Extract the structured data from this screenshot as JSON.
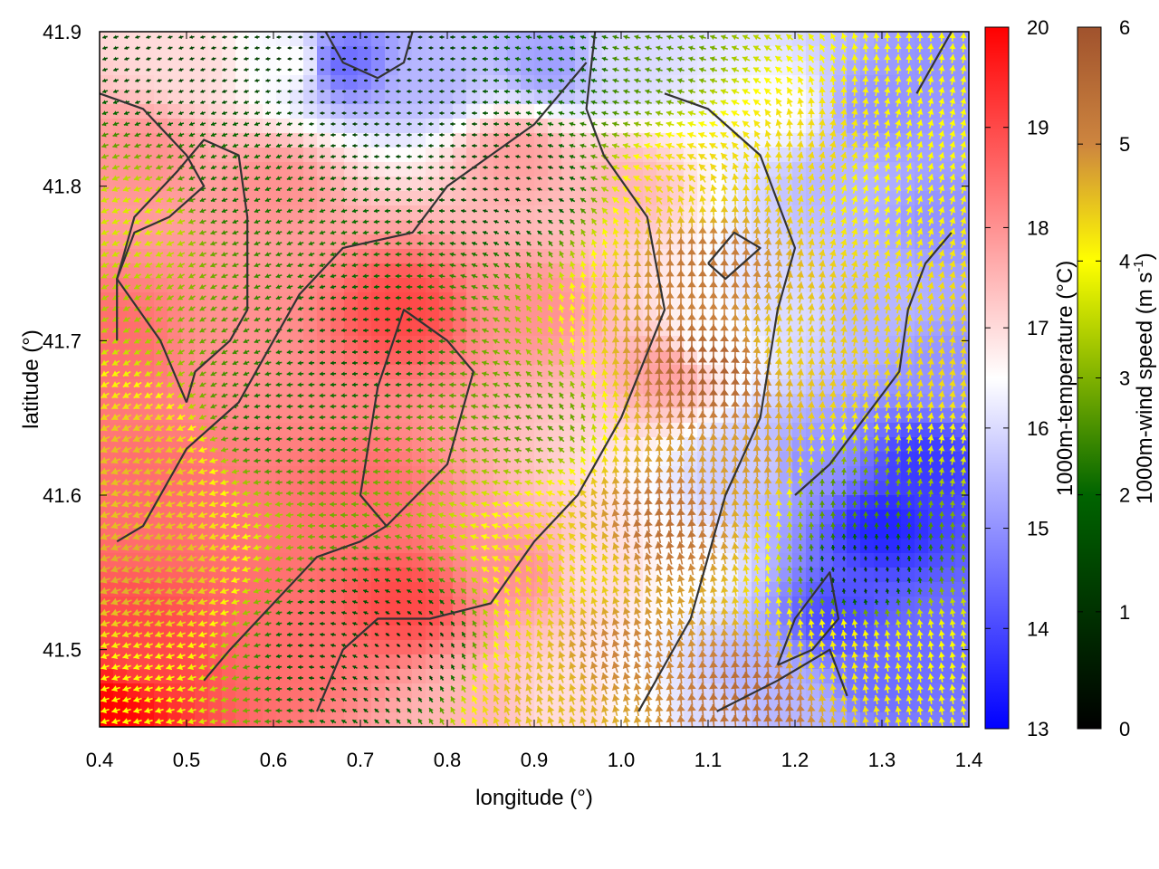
{
  "chart_data": {
    "type": "heatmap",
    "title": "",
    "xlabel": "longitude (°)",
    "ylabel": "latitude (°)",
    "xlim": [
      0.4,
      1.4
    ],
    "ylim": [
      41.45,
      41.9
    ],
    "xticks": [
      "0.4",
      "0.5",
      "0.6",
      "0.7",
      "0.8",
      "0.9",
      "1.0",
      "1.1",
      "1.2",
      "1.3",
      "1.4"
    ],
    "yticks": [
      "41.5",
      "41.6",
      "41.7",
      "41.8",
      "41.9"
    ],
    "grid": false,
    "colorbars": [
      {
        "label": "1000m-temperature (°C)",
        "range": [
          13,
          20
        ],
        "ticks": [
          "13",
          "14",
          "15",
          "16",
          "17",
          "18",
          "19",
          "20"
        ],
        "colors": [
          "#0000ff",
          "#ffffff",
          "#ff0000"
        ]
      },
      {
        "label_main": "1000m-wind speed (m s",
        "label_sup": "-1",
        "label_end": ")",
        "range": [
          0,
          6
        ],
        "ticks": [
          "0",
          "1",
          "2",
          "3",
          "4",
          "5",
          "6"
        ],
        "colors": [
          "#000000",
          "#006400",
          "#ffff00",
          "#cd853f",
          "#a0522d"
        ]
      }
    ],
    "temperature_field": {
      "description_points_lon_lat_value": [
        [
          0.4,
          41.46,
          20.0
        ],
        [
          0.45,
          41.5,
          19.0
        ],
        [
          0.45,
          41.6,
          18.5
        ],
        [
          0.42,
          41.7,
          18.5
        ],
        [
          0.45,
          41.82,
          18.0
        ],
        [
          0.55,
          41.7,
          18.0
        ],
        [
          0.6,
          41.8,
          18.0
        ],
        [
          0.75,
          41.72,
          19.0
        ],
        [
          0.7,
          41.6,
          18.5
        ],
        [
          0.75,
          41.53,
          19.0
        ],
        [
          0.62,
          41.5,
          18.5
        ],
        [
          0.88,
          41.55,
          18.0
        ],
        [
          0.9,
          41.72,
          18.0
        ],
        [
          0.88,
          41.82,
          17.8
        ],
        [
          1.0,
          41.8,
          17.5
        ],
        [
          1.05,
          41.68,
          17.8
        ],
        [
          0.98,
          41.55,
          17.0
        ],
        [
          1.08,
          41.55,
          16.5
        ],
        [
          1.1,
          41.7,
          16.5
        ],
        [
          1.15,
          41.62,
          15.8
        ],
        [
          0.62,
          41.88,
          16.5
        ],
        [
          0.5,
          41.88,
          17.0
        ],
        [
          0.78,
          41.87,
          15.5
        ],
        [
          0.68,
          41.88,
          14.5
        ],
        [
          0.92,
          41.88,
          15.2
        ],
        [
          1.0,
          41.88,
          16.0
        ],
        [
          1.18,
          41.85,
          16.5
        ],
        [
          1.25,
          41.8,
          15.5
        ],
        [
          1.3,
          41.85,
          15.0
        ],
        [
          1.38,
          41.88,
          15.0
        ],
        [
          1.38,
          41.78,
          15.0
        ],
        [
          1.28,
          41.72,
          15.5
        ],
        [
          1.38,
          41.68,
          15.0
        ],
        [
          1.22,
          41.62,
          15.0
        ],
        [
          1.3,
          41.58,
          13.5
        ],
        [
          1.35,
          41.62,
          13.8
        ],
        [
          1.25,
          41.52,
          14.0
        ],
        [
          1.3,
          41.48,
          14.5
        ],
        [
          1.15,
          41.48,
          15.5
        ],
        [
          1.1,
          41.46,
          16.0
        ],
        [
          1.2,
          41.46,
          15.5
        ],
        [
          1.38,
          41.5,
          14.5
        ],
        [
          1.2,
          41.72,
          16.0
        ],
        [
          1.02,
          41.46,
          16.5
        ],
        [
          0.95,
          41.46,
          17.0
        ],
        [
          0.82,
          41.46,
          17.5
        ]
      ]
    },
    "wind_field": {
      "speed_points_lon_lat_value": [
        [
          0.42,
          41.47,
          3.0
        ],
        [
          0.45,
          41.55,
          4.0
        ],
        [
          0.45,
          41.62,
          3.8
        ],
        [
          0.45,
          41.78,
          2.8
        ],
        [
          0.55,
          41.8,
          1.6
        ],
        [
          0.6,
          41.65,
          1.6
        ],
        [
          0.7,
          41.7,
          1.3
        ],
        [
          0.75,
          41.5,
          0.6
        ],
        [
          0.68,
          41.5,
          1.2
        ],
        [
          0.75,
          41.85,
          1.0
        ],
        [
          0.7,
          41.88,
          0.4
        ],
        [
          0.88,
          41.8,
          1.0
        ],
        [
          0.9,
          41.65,
          2.0
        ],
        [
          0.95,
          41.55,
          3.5
        ],
        [
          0.9,
          41.47,
          3.8
        ],
        [
          1.0,
          41.5,
          4.5
        ],
        [
          1.05,
          41.58,
          5.0
        ],
        [
          1.1,
          41.68,
          5.5
        ],
        [
          1.1,
          41.75,
          4.8
        ],
        [
          1.08,
          41.8,
          3.5
        ],
        [
          1.15,
          41.62,
          4.2
        ],
        [
          1.2,
          41.7,
          3.6
        ],
        [
          1.22,
          41.82,
          3.5
        ],
        [
          1.3,
          41.8,
          3.0
        ],
        [
          1.35,
          41.7,
          3.5
        ],
        [
          1.38,
          41.85,
          3.0
        ],
        [
          1.25,
          41.6,
          2.0
        ],
        [
          1.28,
          41.55,
          0.8
        ],
        [
          1.25,
          41.5,
          3.2
        ],
        [
          1.15,
          41.47,
          5.2
        ],
        [
          1.35,
          41.5,
          3.0
        ],
        [
          1.02,
          41.88,
          2.0
        ],
        [
          0.5,
          41.88,
          1.0
        ],
        [
          0.95,
          41.88,
          1.5
        ]
      ],
      "direction_points_lon_lat_deg": [
        [
          0.45,
          41.55,
          200
        ],
        [
          0.45,
          41.7,
          210
        ],
        [
          0.55,
          41.8,
          200
        ],
        [
          0.7,
          41.65,
          185
        ],
        [
          0.85,
          41.6,
          165
        ],
        [
          0.95,
          41.52,
          110
        ],
        [
          1.05,
          41.62,
          95
        ],
        [
          1.1,
          41.72,
          90
        ],
        [
          1.2,
          41.72,
          80
        ],
        [
          1.3,
          41.78,
          70
        ],
        [
          1.35,
          41.65,
          80
        ],
        [
          1.15,
          41.47,
          95
        ],
        [
          1.3,
          41.5,
          100
        ],
        [
          0.75,
          41.86,
          180
        ],
        [
          1.0,
          41.86,
          165
        ]
      ]
    },
    "contours": [
      [
        [
          0.4,
          41.86
        ],
        [
          0.45,
          41.85
        ],
        [
          0.5,
          41.82
        ],
        [
          0.52,
          41.8
        ],
        [
          0.48,
          41.78
        ],
        [
          0.44,
          41.77
        ],
        [
          0.42,
          41.74
        ],
        [
          0.42,
          41.7
        ]
      ],
      [
        [
          0.5,
          41.66
        ],
        [
          0.47,
          41.7
        ],
        [
          0.42,
          41.74
        ],
        [
          0.44,
          41.78
        ],
        [
          0.49,
          41.81
        ],
        [
          0.52,
          41.83
        ],
        [
          0.56,
          41.82
        ],
        [
          0.57,
          41.78
        ],
        [
          0.57,
          41.72
        ],
        [
          0.55,
          41.7
        ],
        [
          0.51,
          41.68
        ],
        [
          0.5,
          41.66
        ]
      ],
      [
        [
          0.42,
          41.57
        ],
        [
          0.45,
          41.58
        ],
        [
          0.5,
          41.63
        ],
        [
          0.56,
          41.66
        ],
        [
          0.6,
          41.7
        ],
        [
          0.63,
          41.73
        ],
        [
          0.68,
          41.76
        ],
        [
          0.76,
          41.77
        ],
        [
          0.8,
          41.8
        ],
        [
          0.85,
          41.82
        ],
        [
          0.9,
          41.84
        ],
        [
          0.96,
          41.88
        ]
      ],
      [
        [
          0.52,
          41.48
        ],
        [
          0.55,
          41.5
        ],
        [
          0.6,
          41.53
        ],
        [
          0.65,
          41.56
        ],
        [
          0.7,
          41.57
        ],
        [
          0.73,
          41.58
        ],
        [
          0.7,
          41.6
        ],
        [
          0.72,
          41.67
        ],
        [
          0.75,
          41.72
        ],
        [
          0.8,
          41.7
        ],
        [
          0.83,
          41.68
        ],
        [
          0.8,
          41.62
        ],
        [
          0.73,
          41.58
        ]
      ],
      [
        [
          0.65,
          41.46
        ],
        [
          0.68,
          41.5
        ],
        [
          0.72,
          41.52
        ],
        [
          0.78,
          41.52
        ],
        [
          0.85,
          41.53
        ],
        [
          0.9,
          41.57
        ],
        [
          0.95,
          41.6
        ],
        [
          1.0,
          41.65
        ],
        [
          1.05,
          41.72
        ],
        [
          1.03,
          41.78
        ],
        [
          0.98,
          41.82
        ],
        [
          0.96,
          41.85
        ],
        [
          0.97,
          41.9
        ]
      ],
      [
        [
          1.02,
          41.46
        ],
        [
          1.08,
          41.52
        ],
        [
          1.12,
          41.6
        ],
        [
          1.16,
          41.65
        ],
        [
          1.18,
          41.72
        ],
        [
          1.2,
          41.76
        ],
        [
          1.16,
          41.82
        ],
        [
          1.1,
          41.85
        ],
        [
          1.05,
          41.86
        ]
      ],
      [
        [
          1.11,
          41.46
        ],
        [
          1.18,
          41.48
        ],
        [
          1.24,
          41.5
        ],
        [
          1.26,
          41.47
        ]
      ],
      [
        [
          1.18,
          41.49
        ],
        [
          1.22,
          41.5
        ],
        [
          1.25,
          41.52
        ],
        [
          1.24,
          41.55
        ],
        [
          1.2,
          41.52
        ],
        [
          1.18,
          41.49
        ]
      ],
      [
        [
          1.1,
          41.75
        ],
        [
          1.13,
          41.77
        ],
        [
          1.16,
          41.76
        ],
        [
          1.12,
          41.74
        ],
        [
          1.1,
          41.75
        ]
      ],
      [
        [
          1.2,
          41.6
        ],
        [
          1.24,
          41.62
        ],
        [
          1.28,
          41.65
        ],
        [
          1.32,
          41.68
        ],
        [
          1.33,
          41.72
        ],
        [
          1.35,
          41.75
        ],
        [
          1.38,
          41.77
        ]
      ],
      [
        [
          1.34,
          41.86
        ],
        [
          1.36,
          41.88
        ],
        [
          1.38,
          41.9
        ]
      ],
      [
        [
          0.66,
          41.9
        ],
        [
          0.68,
          41.88
        ],
        [
          0.72,
          41.87
        ],
        [
          0.75,
          41.88
        ],
        [
          0.76,
          41.9
        ]
      ]
    ]
  }
}
